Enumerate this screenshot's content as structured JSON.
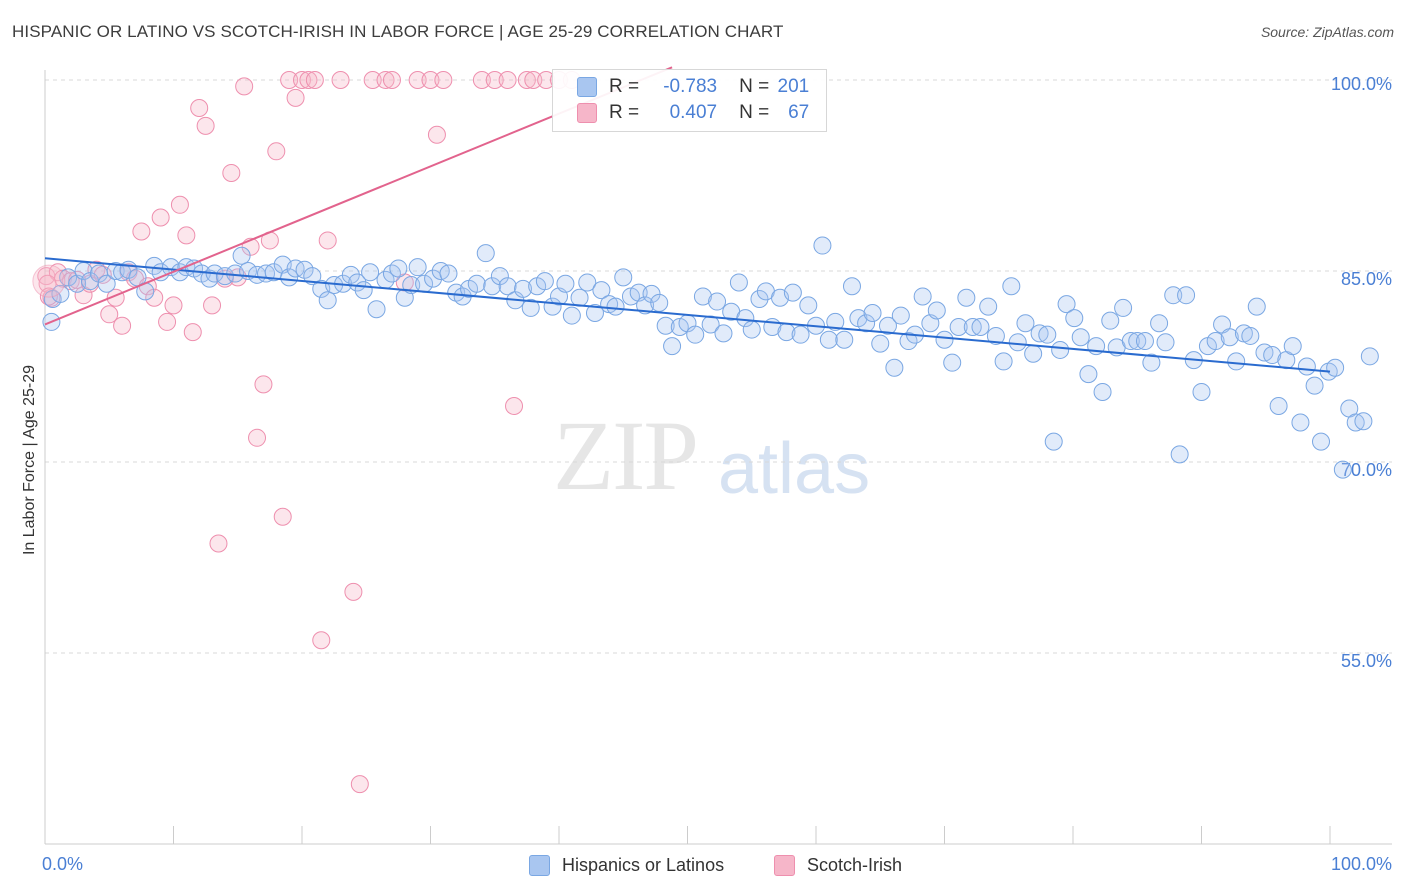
{
  "title": "HISPANIC OR LATINO VS SCOTCH-IRISH IN LABOR FORCE | AGE 25-29 CORRELATION CHART",
  "source": "Source: ZipAtlas.com",
  "watermark": {
    "zip": "ZIP",
    "atlas": "atlas"
  },
  "legend": {
    "r_label": "R =",
    "n_label": "N =",
    "rows": [
      {
        "r": "-0.783",
        "n": "201",
        "color": "#a9c6f0"
      },
      {
        "r": "0.407",
        "n": "67",
        "color": "#f6b6c9"
      }
    ]
  },
  "bottom_legend": [
    {
      "label": "Hispanics or Latinos",
      "color": "#a9c6f0"
    },
    {
      "label": "Scotch-Irish",
      "color": "#f6b6c9"
    }
  ],
  "colors": {
    "blue_point": "#7aa7e3",
    "blue_line": "#2a6bcf",
    "pink_point": "#ee8fae",
    "pink_line": "#e2638d",
    "tick": "#4a7fd4",
    "grid": "#d8d8d8"
  },
  "chart_data": {
    "type": "scatter",
    "title": "HISPANIC OR LATINO VS SCOTCH-IRISH IN LABOR FORCE | AGE 25-29 CORRELATION CHART",
    "xlabel": "",
    "ylabel": "In Labor Force | Age 25-29",
    "xlim": [
      0,
      100
    ],
    "ylim": [
      40,
      101
    ],
    "x_tick_labels": [
      "0.0%",
      "100.0%"
    ],
    "y_ticks": [
      55,
      70,
      85,
      100
    ],
    "y_tick_labels": [
      "55.0%",
      "70.0%",
      "85.0%",
      "100.0%"
    ],
    "grid": "horizontal dashed",
    "legend_placement": "top-center",
    "series": [
      {
        "name": "Hispanics or Latinos",
        "trend": {
          "x": [
            0,
            100
          ],
          "y": [
            86.0,
            77.1
          ]
        },
        "points": [
          [
            0.5,
            81.0
          ],
          [
            0.6,
            82.8
          ],
          [
            1.2,
            83.2
          ],
          [
            1.8,
            84.5
          ],
          [
            2.5,
            84.0
          ],
          [
            3.0,
            85.0
          ],
          [
            3.5,
            84.2
          ],
          [
            4.2,
            84.8
          ],
          [
            4.8,
            84.0
          ],
          [
            5.5,
            85.0
          ],
          [
            6.0,
            84.9
          ],
          [
            6.5,
            85.1
          ],
          [
            7.2,
            84.5
          ],
          [
            7.8,
            83.4
          ],
          [
            8.5,
            85.4
          ],
          [
            9.0,
            84.9
          ],
          [
            9.8,
            85.3
          ],
          [
            10.5,
            84.9
          ],
          [
            11.0,
            85.3
          ],
          [
            11.6,
            85.2
          ],
          [
            12.2,
            84.8
          ],
          [
            12.8,
            84.4
          ],
          [
            13.2,
            84.8
          ],
          [
            14.0,
            84.6
          ],
          [
            14.8,
            84.8
          ],
          [
            15.3,
            86.2
          ],
          [
            15.8,
            85.0
          ],
          [
            16.5,
            84.7
          ],
          [
            17.2,
            84.8
          ],
          [
            17.8,
            84.9
          ],
          [
            18.5,
            85.5
          ],
          [
            19.0,
            84.5
          ],
          [
            19.5,
            85.2
          ],
          [
            20.2,
            85.1
          ],
          [
            20.8,
            84.6
          ],
          [
            21.5,
            83.6
          ],
          [
            22.0,
            82.7
          ],
          [
            22.5,
            83.9
          ],
          [
            23.2,
            84.0
          ],
          [
            23.8,
            84.7
          ],
          [
            24.3,
            84.1
          ],
          [
            24.8,
            83.5
          ],
          [
            25.3,
            84.9
          ],
          [
            25.8,
            82.0
          ],
          [
            26.5,
            84.3
          ],
          [
            27.0,
            84.8
          ],
          [
            27.5,
            85.2
          ],
          [
            28.0,
            82.9
          ],
          [
            28.5,
            83.9
          ],
          [
            29.0,
            85.3
          ],
          [
            29.5,
            84.0
          ],
          [
            30.2,
            84.4
          ],
          [
            30.8,
            85.0
          ],
          [
            31.4,
            84.8
          ],
          [
            32.0,
            83.3
          ],
          [
            32.5,
            83.0
          ],
          [
            33.0,
            83.6
          ],
          [
            33.6,
            84.0
          ],
          [
            34.3,
            86.4
          ],
          [
            34.8,
            83.8
          ],
          [
            35.4,
            84.6
          ],
          [
            36.0,
            83.8
          ],
          [
            36.6,
            82.7
          ],
          [
            37.2,
            83.6
          ],
          [
            37.8,
            82.1
          ],
          [
            38.3,
            83.8
          ],
          [
            38.9,
            84.2
          ],
          [
            39.5,
            82.2
          ],
          [
            40.0,
            83.0
          ],
          [
            40.5,
            84.0
          ],
          [
            41.0,
            81.5
          ],
          [
            41.6,
            82.9
          ],
          [
            42.2,
            84.1
          ],
          [
            42.8,
            81.7
          ],
          [
            43.3,
            83.5
          ],
          [
            43.9,
            82.4
          ],
          [
            44.4,
            82.2
          ],
          [
            45.0,
            84.5
          ],
          [
            45.6,
            83.0
          ],
          [
            46.2,
            83.3
          ],
          [
            46.7,
            82.3
          ],
          [
            47.2,
            83.2
          ],
          [
            47.8,
            82.5
          ],
          [
            48.3,
            80.7
          ],
          [
            48.8,
            79.1
          ],
          [
            49.4,
            80.6
          ],
          [
            50.0,
            80.9
          ],
          [
            50.6,
            80.0
          ],
          [
            51.2,
            83.0
          ],
          [
            51.8,
            80.8
          ],
          [
            52.3,
            82.6
          ],
          [
            52.8,
            80.1
          ],
          [
            53.4,
            81.8
          ],
          [
            54.0,
            84.1
          ],
          [
            54.5,
            81.3
          ],
          [
            55.0,
            80.4
          ],
          [
            55.6,
            82.8
          ],
          [
            56.1,
            83.4
          ],
          [
            56.6,
            80.6
          ],
          [
            57.2,
            82.9
          ],
          [
            57.7,
            80.2
          ],
          [
            58.2,
            83.3
          ],
          [
            58.8,
            80.0
          ],
          [
            59.4,
            82.3
          ],
          [
            60.0,
            80.7
          ],
          [
            60.5,
            87.0
          ],
          [
            61.0,
            79.6
          ],
          [
            61.5,
            81.0
          ],
          [
            62.2,
            79.6
          ],
          [
            62.8,
            83.8
          ],
          [
            63.3,
            81.3
          ],
          [
            63.9,
            80.9
          ],
          [
            64.4,
            81.7
          ],
          [
            65.0,
            79.3
          ],
          [
            65.6,
            80.7
          ],
          [
            66.1,
            77.4
          ],
          [
            66.6,
            81.5
          ],
          [
            67.2,
            79.5
          ],
          [
            67.7,
            80.0
          ],
          [
            68.3,
            83.0
          ],
          [
            68.9,
            80.9
          ],
          [
            69.4,
            81.9
          ],
          [
            70.0,
            79.6
          ],
          [
            70.6,
            77.8
          ],
          [
            71.1,
            80.6
          ],
          [
            71.7,
            82.9
          ],
          [
            72.2,
            80.6
          ],
          [
            72.8,
            80.6
          ],
          [
            73.4,
            82.2
          ],
          [
            74.0,
            79.9
          ],
          [
            74.6,
            77.9
          ],
          [
            75.2,
            83.8
          ],
          [
            75.7,
            79.4
          ],
          [
            76.3,
            80.9
          ],
          [
            76.9,
            78.5
          ],
          [
            77.4,
            80.1
          ],
          [
            78.0,
            80.0
          ],
          [
            78.5,
            71.6
          ],
          [
            79.0,
            78.8
          ],
          [
            79.5,
            82.4
          ],
          [
            80.1,
            81.3
          ],
          [
            80.6,
            79.8
          ],
          [
            81.2,
            76.9
          ],
          [
            81.8,
            79.1
          ],
          [
            82.3,
            75.5
          ],
          [
            82.9,
            81.1
          ],
          [
            83.4,
            79.0
          ],
          [
            83.9,
            82.1
          ],
          [
            84.5,
            79.5
          ],
          [
            85.0,
            79.5
          ],
          [
            85.6,
            79.5
          ],
          [
            86.1,
            77.8
          ],
          [
            86.7,
            80.9
          ],
          [
            87.2,
            79.4
          ],
          [
            87.8,
            83.1
          ],
          [
            88.3,
            70.6
          ],
          [
            88.8,
            83.1
          ],
          [
            89.4,
            78.0
          ],
          [
            90.0,
            75.5
          ],
          [
            90.5,
            79.1
          ],
          [
            91.1,
            79.5
          ],
          [
            91.6,
            80.8
          ],
          [
            92.2,
            79.8
          ],
          [
            92.7,
            77.9
          ],
          [
            93.3,
            80.1
          ],
          [
            93.8,
            79.9
          ],
          [
            94.3,
            82.2
          ],
          [
            94.9,
            78.6
          ],
          [
            95.5,
            78.4
          ],
          [
            96.0,
            74.4
          ],
          [
            96.6,
            78.0
          ],
          [
            97.1,
            79.1
          ],
          [
            97.7,
            73.1
          ],
          [
            98.2,
            77.5
          ],
          [
            98.8,
            76.0
          ],
          [
            99.3,
            71.6
          ],
          [
            99.9,
            77.1
          ],
          [
            100.4,
            77.4
          ],
          [
            101.0,
            69.4
          ],
          [
            101.5,
            74.2
          ],
          [
            102.0,
            73.1
          ],
          [
            102.6,
            73.2
          ],
          [
            103.1,
            78.3
          ]
        ]
      },
      {
        "name": "Scotch-Irish",
        "trend": {
          "x": [
            0,
            48.8
          ],
          "y": [
            80.8,
            101.0
          ]
        },
        "points": [
          [
            0.1,
            84.6
          ],
          [
            0.5,
            82.9
          ],
          [
            1.0,
            84.9
          ],
          [
            1.4,
            84.4
          ],
          [
            2.0,
            84.2
          ],
          [
            2.5,
            84.3
          ],
          [
            3.0,
            83.1
          ],
          [
            3.5,
            84.0
          ],
          [
            4.0,
            85.1
          ],
          [
            4.5,
            84.7
          ],
          [
            5.0,
            81.6
          ],
          [
            5.5,
            82.9
          ],
          [
            6.0,
            80.7
          ],
          [
            6.5,
            84.9
          ],
          [
            7.0,
            84.4
          ],
          [
            7.5,
            88.1
          ],
          [
            8.0,
            83.8
          ],
          [
            8.5,
            82.9
          ],
          [
            9.0,
            89.2
          ],
          [
            9.5,
            81.0
          ],
          [
            10.0,
            82.3
          ],
          [
            10.5,
            90.2
          ],
          [
            11.0,
            87.8
          ],
          [
            11.5,
            80.2
          ],
          [
            12.0,
            97.8
          ],
          [
            12.5,
            96.4
          ],
          [
            13.0,
            82.3
          ],
          [
            13.5,
            63.6
          ],
          [
            14.0,
            84.4
          ],
          [
            14.5,
            92.7
          ],
          [
            15.0,
            84.5
          ],
          [
            15.5,
            99.5
          ],
          [
            16.0,
            86.9
          ],
          [
            16.5,
            71.9
          ],
          [
            17.0,
            76.1
          ],
          [
            17.5,
            87.4
          ],
          [
            18.0,
            94.4
          ],
          [
            18.5,
            65.7
          ],
          [
            19.0,
            100.0
          ],
          [
            19.5,
            98.6
          ],
          [
            20.0,
            100.0
          ],
          [
            20.5,
            100.0
          ],
          [
            21.0,
            100.0
          ],
          [
            21.5,
            56.0
          ],
          [
            22.0,
            87.4
          ],
          [
            23.0,
            100.0
          ],
          [
            24.0,
            59.8
          ],
          [
            24.5,
            44.7
          ],
          [
            25.5,
            100.0
          ],
          [
            26.5,
            100.0
          ],
          [
            27.0,
            100.0
          ],
          [
            28.0,
            84.1
          ],
          [
            29.0,
            100.0
          ],
          [
            30.0,
            100.0
          ],
          [
            30.5,
            95.7
          ],
          [
            31.0,
            100.0
          ],
          [
            34.0,
            100.0
          ],
          [
            35.0,
            100.0
          ],
          [
            36.0,
            100.0
          ],
          [
            36.5,
            74.4
          ],
          [
            37.5,
            100.0
          ],
          [
            38.0,
            100.0
          ],
          [
            39.0,
            100.0
          ],
          [
            40.0,
            100.0
          ],
          [
            41.0,
            100.0
          ],
          [
            0.2,
            84.0
          ],
          [
            0.3,
            83.0
          ]
        ]
      }
    ]
  }
}
